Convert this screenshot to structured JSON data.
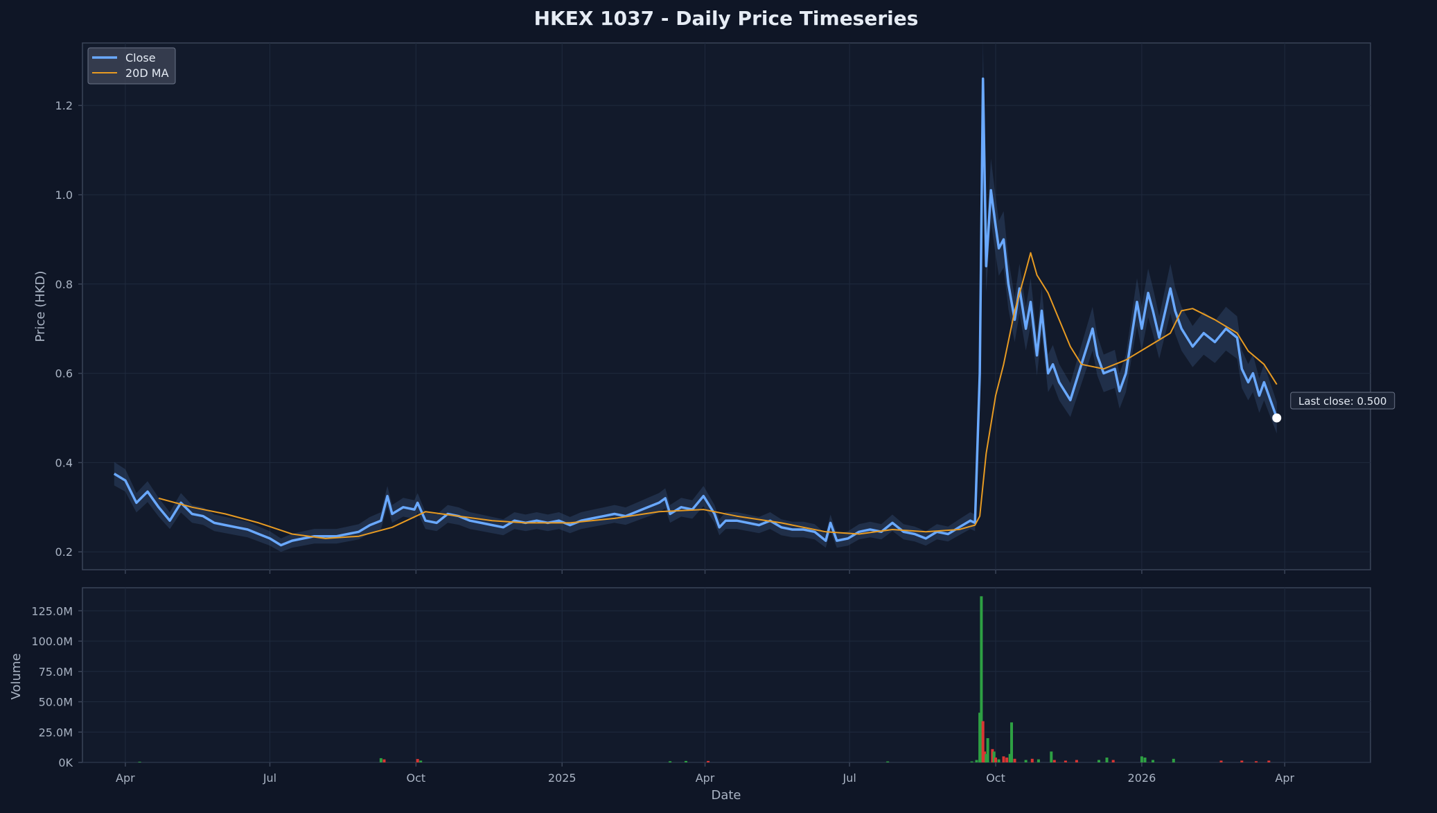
{
  "title": "HKEX 1037 - Daily Price Timeseries",
  "colors": {
    "background": "#0f1626",
    "panel": "#121a2b",
    "close": "#6aa9ff",
    "ma": "#e89b22",
    "up": "#2ea043",
    "down": "#da3633",
    "text": "#aab4c4",
    "title": "#e6ecf5",
    "spine": "#3a4458"
  },
  "chart_data": [
    {
      "type": "line",
      "title": "HKEX 1037 - Daily Price Timeseries",
      "ylabel": "Price (HKD)",
      "xlabel": "",
      "ylim": [
        0.16,
        1.34
      ],
      "yticks": [
        0.2,
        0.4,
        0.6,
        0.8,
        1.0,
        1.2
      ],
      "ytick_labels": [
        "0.2",
        "0.4",
        "0.6",
        "0.8",
        "1.0",
        "1.2"
      ],
      "grid": true,
      "legend": "top-left",
      "series": [
        {
          "name": "Close",
          "points": [
            [
              "2024-03-25",
              0.375
            ],
            [
              "2024-04-01",
              0.36
            ],
            [
              "2024-04-08",
              0.31
            ],
            [
              "2024-04-15",
              0.335
            ],
            [
              "2024-04-22",
              0.3
            ],
            [
              "2024-04-29",
              0.27
            ],
            [
              "2024-05-06",
              0.31
            ],
            [
              "2024-05-13",
              0.285
            ],
            [
              "2024-05-20",
              0.28
            ],
            [
              "2024-05-27",
              0.265
            ],
            [
              "2024-06-03",
              0.26
            ],
            [
              "2024-06-10",
              0.255
            ],
            [
              "2024-06-17",
              0.25
            ],
            [
              "2024-06-24",
              0.24
            ],
            [
              "2024-07-01",
              0.23
            ],
            [
              "2024-07-08",
              0.215
            ],
            [
              "2024-07-15",
              0.225
            ],
            [
              "2024-07-22",
              0.23
            ],
            [
              "2024-07-29",
              0.235
            ],
            [
              "2024-08-05",
              0.235
            ],
            [
              "2024-08-12",
              0.235
            ],
            [
              "2024-08-19",
              0.24
            ],
            [
              "2024-08-26",
              0.245
            ],
            [
              "2024-09-02",
              0.26
            ],
            [
              "2024-09-09",
              0.27
            ],
            [
              "2024-09-13",
              0.325
            ],
            [
              "2024-09-16",
              0.285
            ],
            [
              "2024-09-23",
              0.3
            ],
            [
              "2024-09-30",
              0.295
            ],
            [
              "2024-10-02",
              0.31
            ],
            [
              "2024-10-07",
              0.27
            ],
            [
              "2024-10-14",
              0.265
            ],
            [
              "2024-10-21",
              0.285
            ],
            [
              "2024-10-28",
              0.28
            ],
            [
              "2024-11-04",
              0.27
            ],
            [
              "2024-11-11",
              0.265
            ],
            [
              "2024-11-18",
              0.26
            ],
            [
              "2024-11-25",
              0.255
            ],
            [
              "2024-12-02",
              0.27
            ],
            [
              "2024-12-09",
              0.265
            ],
            [
              "2024-12-16",
              0.27
            ],
            [
              "2024-12-23",
              0.265
            ],
            [
              "2024-12-30",
              0.27
            ],
            [
              "2025-01-06",
              0.26
            ],
            [
              "2025-01-13",
              0.27
            ],
            [
              "2025-01-20",
              0.275
            ],
            [
              "2025-01-27",
              0.28
            ],
            [
              "2025-02-03",
              0.285
            ],
            [
              "2025-02-10",
              0.28
            ],
            [
              "2025-02-17",
              0.29
            ],
            [
              "2025-02-24",
              0.3
            ],
            [
              "2025-03-03",
              0.31
            ],
            [
              "2025-03-07",
              0.32
            ],
            [
              "2025-03-10",
              0.285
            ],
            [
              "2025-03-17",
              0.3
            ],
            [
              "2025-03-24",
              0.295
            ],
            [
              "2025-03-31",
              0.325
            ],
            [
              "2025-04-07",
              0.285
            ],
            [
              "2025-04-10",
              0.255
            ],
            [
              "2025-04-14",
              0.27
            ],
            [
              "2025-04-21",
              0.27
            ],
            [
              "2025-04-28",
              0.265
            ],
            [
              "2025-05-05",
              0.26
            ],
            [
              "2025-05-12",
              0.27
            ],
            [
              "2025-05-19",
              0.255
            ],
            [
              "2025-05-26",
              0.25
            ],
            [
              "2025-06-02",
              0.25
            ],
            [
              "2025-06-09",
              0.245
            ],
            [
              "2025-06-16",
              0.225
            ],
            [
              "2025-06-19",
              0.265
            ],
            [
              "2025-06-23",
              0.225
            ],
            [
              "2025-06-30",
              0.23
            ],
            [
              "2025-07-07",
              0.245
            ],
            [
              "2025-07-14",
              0.25
            ],
            [
              "2025-07-21",
              0.245
            ],
            [
              "2025-07-28",
              0.265
            ],
            [
              "2025-08-04",
              0.245
            ],
            [
              "2025-08-11",
              0.24
            ],
            [
              "2025-08-18",
              0.23
            ],
            [
              "2025-08-25",
              0.245
            ],
            [
              "2025-09-01",
              0.24
            ],
            [
              "2025-09-08",
              0.255
            ],
            [
              "2025-09-15",
              0.27
            ],
            [
              "2025-09-18",
              0.265
            ],
            [
              "2025-09-21",
              0.6
            ],
            [
              "2025-09-23",
              1.26
            ],
            [
              "2025-09-25",
              0.84
            ],
            [
              "2025-09-28",
              1.01
            ],
            [
              "2025-10-01",
              0.93
            ],
            [
              "2025-10-03",
              0.88
            ],
            [
              "2025-10-06",
              0.9
            ],
            [
              "2025-10-09",
              0.8
            ],
            [
              "2025-10-13",
              0.72
            ],
            [
              "2025-10-16",
              0.79
            ],
            [
              "2025-10-20",
              0.7
            ],
            [
              "2025-10-23",
              0.76
            ],
            [
              "2025-10-27",
              0.64
            ],
            [
              "2025-10-30",
              0.74
            ],
            [
              "2025-11-03",
              0.6
            ],
            [
              "2025-11-06",
              0.62
            ],
            [
              "2025-11-10",
              0.58
            ],
            [
              "2025-11-17",
              0.54
            ],
            [
              "2025-11-24",
              0.62
            ],
            [
              "2025-12-01",
              0.7
            ],
            [
              "2025-12-04",
              0.64
            ],
            [
              "2025-12-08",
              0.6
            ],
            [
              "2025-12-15",
              0.61
            ],
            [
              "2025-12-18",
              0.56
            ],
            [
              "2025-12-22",
              0.6
            ],
            [
              "2025-12-29",
              0.76
            ],
            [
              "2026-01-01",
              0.7
            ],
            [
              "2026-01-05",
              0.78
            ],
            [
              "2026-01-08",
              0.74
            ],
            [
              "2026-01-12",
              0.68
            ],
            [
              "2026-01-19",
              0.79
            ],
            [
              "2026-01-22",
              0.74
            ],
            [
              "2026-01-26",
              0.7
            ],
            [
              "2026-02-02",
              0.66
            ],
            [
              "2026-02-09",
              0.69
            ],
            [
              "2026-02-16",
              0.67
            ],
            [
              "2026-02-23",
              0.7
            ],
            [
              "2026-03-02",
              0.68
            ],
            [
              "2026-03-05",
              0.61
            ],
            [
              "2026-03-09",
              0.58
            ],
            [
              "2026-03-12",
              0.6
            ],
            [
              "2026-03-16",
              0.55
            ],
            [
              "2026-03-19",
              0.58
            ],
            [
              "2026-03-23",
              0.54
            ],
            [
              "2026-03-27",
              0.5
            ]
          ]
        },
        {
          "name": "20D MA",
          "points": [
            [
              "2024-04-22",
              0.32
            ],
            [
              "2024-05-13",
              0.3
            ],
            [
              "2024-06-03",
              0.285
            ],
            [
              "2024-06-24",
              0.265
            ],
            [
              "2024-07-15",
              0.24
            ],
            [
              "2024-08-05",
              0.23
            ],
            [
              "2024-08-26",
              0.235
            ],
            [
              "2024-09-16",
              0.255
            ],
            [
              "2024-10-07",
              0.29
            ],
            [
              "2024-10-28",
              0.28
            ],
            [
              "2024-11-18",
              0.27
            ],
            [
              "2024-12-09",
              0.265
            ],
            [
              "2025-01-06",
              0.265
            ],
            [
              "2025-02-03",
              0.275
            ],
            [
              "2025-03-03",
              0.29
            ],
            [
              "2025-03-31",
              0.295
            ],
            [
              "2025-04-21",
              0.28
            ],
            [
              "2025-05-19",
              0.265
            ],
            [
              "2025-06-16",
              0.245
            ],
            [
              "2025-07-07",
              0.24
            ],
            [
              "2025-07-28",
              0.25
            ],
            [
              "2025-08-18",
              0.245
            ],
            [
              "2025-09-08",
              0.25
            ],
            [
              "2025-09-18",
              0.26
            ],
            [
              "2025-09-21",
              0.28
            ],
            [
              "2025-09-25",
              0.42
            ],
            [
              "2025-10-01",
              0.55
            ],
            [
              "2025-10-06",
              0.62
            ],
            [
              "2025-10-13",
              0.74
            ],
            [
              "2025-10-20",
              0.83
            ],
            [
              "2025-10-23",
              0.87
            ],
            [
              "2025-10-27",
              0.82
            ],
            [
              "2025-11-03",
              0.78
            ],
            [
              "2025-11-10",
              0.72
            ],
            [
              "2025-11-17",
              0.66
            ],
            [
              "2025-11-24",
              0.62
            ],
            [
              "2025-12-08",
              0.61
            ],
            [
              "2025-12-22",
              0.63
            ],
            [
              "2026-01-05",
              0.66
            ],
            [
              "2026-01-19",
              0.69
            ],
            [
              "2026-01-26",
              0.74
            ],
            [
              "2026-02-02",
              0.745
            ],
            [
              "2026-02-16",
              0.72
            ],
            [
              "2026-03-02",
              0.69
            ],
            [
              "2026-03-09",
              0.65
            ],
            [
              "2026-03-19",
              0.62
            ],
            [
              "2026-03-27",
              0.575
            ]
          ]
        }
      ],
      "annotation": {
        "label": "Last close: 0.500",
        "date": "2026-03-27",
        "value": 0.5
      }
    },
    {
      "type": "bar",
      "title": "",
      "xlabel": "Date",
      "ylabel": "Volume",
      "ylim": [
        0,
        144000000
      ],
      "yticks": [
        0,
        25000000,
        50000000,
        75000000,
        100000000,
        125000000
      ],
      "ytick_labels": [
        "0K",
        "25.0M",
        "50.0M",
        "75.0M",
        "100.0M",
        "125.0M"
      ],
      "xlim": [
        "2024-03-05",
        "2026-05-25"
      ],
      "xticks": [
        "2024-04-01",
        "2024-07-01",
        "2024-10-01",
        "2025-01-01",
        "2025-04-01",
        "2025-07-01",
        "2025-10-01",
        "2026-01-01",
        "2026-04-01"
      ],
      "xtick_labels": [
        "Apr",
        "Jul",
        "Oct",
        "2025",
        "Apr",
        "Jul",
        "Oct",
        "2026",
        "Apr"
      ],
      "grid": true,
      "bars": [
        [
          "2024-04-10",
          0.6,
          "up"
        ],
        [
          "2024-09-09",
          3.5,
          "up"
        ],
        [
          "2024-09-11",
          2.5,
          "down"
        ],
        [
          "2024-10-02",
          2.8,
          "down"
        ],
        [
          "2024-10-04",
          1.5,
          "up"
        ],
        [
          "2025-03-10",
          1.0,
          "up"
        ],
        [
          "2025-03-20",
          1.2,
          "up"
        ],
        [
          "2025-04-03",
          1.2,
          "down"
        ],
        [
          "2025-07-25",
          0.8,
          "up"
        ],
        [
          "2025-09-16",
          0.8,
          "up"
        ],
        [
          "2025-09-19",
          2.0,
          "up"
        ],
        [
          "2025-09-21",
          41,
          "up"
        ],
        [
          "2025-09-22",
          137,
          "up"
        ],
        [
          "2025-09-23",
          34,
          "down"
        ],
        [
          "2025-09-24",
          9,
          "down"
        ],
        [
          "2025-09-25",
          7,
          "up"
        ],
        [
          "2025-09-26",
          20,
          "up"
        ],
        [
          "2025-09-29",
          11,
          "down"
        ],
        [
          "2025-09-30",
          9,
          "up"
        ],
        [
          "2025-10-01",
          4,
          "down"
        ],
        [
          "2025-10-03",
          2.5,
          "up"
        ],
        [
          "2025-10-06",
          5,
          "down"
        ],
        [
          "2025-10-08",
          4,
          "down"
        ],
        [
          "2025-10-10",
          7,
          "up"
        ],
        [
          "2025-10-11",
          33,
          "up"
        ],
        [
          "2025-10-13",
          3,
          "down"
        ],
        [
          "2025-10-20",
          2,
          "up"
        ],
        [
          "2025-10-24",
          3,
          "down"
        ],
        [
          "2025-10-28",
          2.5,
          "up"
        ],
        [
          "2025-11-05",
          9,
          "up"
        ],
        [
          "2025-11-07",
          2,
          "down"
        ],
        [
          "2025-11-14",
          1.5,
          "down"
        ],
        [
          "2025-11-21",
          2,
          "down"
        ],
        [
          "2025-12-05",
          2,
          "up"
        ],
        [
          "2025-12-10",
          4,
          "up"
        ],
        [
          "2025-12-14",
          2,
          "down"
        ],
        [
          "2026-01-01",
          5,
          "up"
        ],
        [
          "2026-01-03",
          4,
          "up"
        ],
        [
          "2026-01-08",
          2,
          "up"
        ],
        [
          "2026-01-21",
          3,
          "up"
        ],
        [
          "2026-02-20",
          1.5,
          "down"
        ],
        [
          "2026-03-05",
          1.5,
          "down"
        ],
        [
          "2026-03-14",
          1.0,
          "down"
        ],
        [
          "2026-03-22",
          1.5,
          "down"
        ]
      ]
    }
  ]
}
